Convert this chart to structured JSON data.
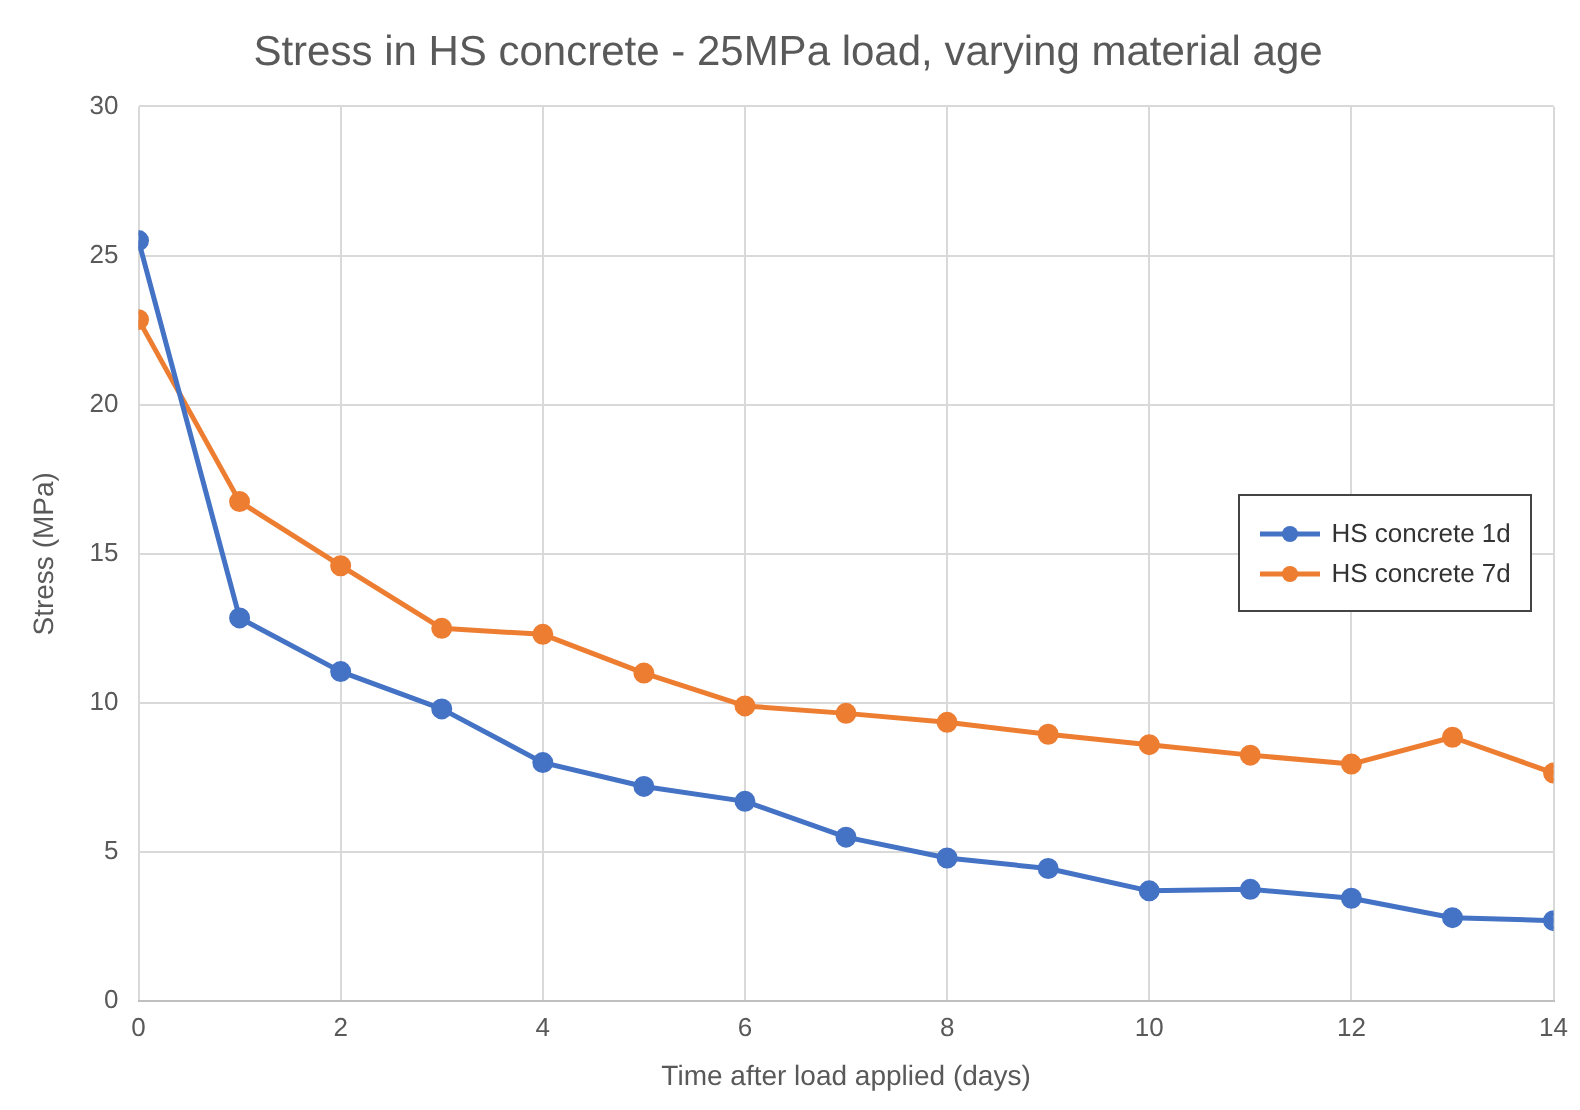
{
  "chart_data": {
    "type": "line",
    "title": "Stress in HS concrete - 25MPa load, varying material age",
    "xlabel": "Time after load applied (days)",
    "ylabel": "Stress (MPa)",
    "x": [
      0,
      1,
      2,
      3,
      4,
      5,
      6,
      7,
      8,
      9,
      10,
      11,
      12,
      13,
      14
    ],
    "series": [
      {
        "name": "HS concrete 1d",
        "color": "#4472c4",
        "values": [
          25.5,
          12.85,
          11.05,
          9.8,
          8.0,
          7.2,
          6.7,
          5.5,
          4.8,
          4.45,
          3.7,
          3.75,
          3.45,
          2.8,
          2.7
        ]
      },
      {
        "name": "HS concrete 7d",
        "color": "#ed7d31",
        "values": [
          22.85,
          16.75,
          14.6,
          12.5,
          12.3,
          11.0,
          9.9,
          9.65,
          9.35,
          8.95,
          8.6,
          8.25,
          7.95,
          8.85,
          7.65
        ]
      }
    ],
    "xlim": [
      0,
      14
    ],
    "xticks": [
      0,
      2,
      4,
      6,
      8,
      10,
      12,
      14
    ],
    "ylim": [
      0,
      30
    ],
    "yticks": [
      0,
      5,
      10,
      15,
      20,
      25,
      30
    ],
    "grid": true,
    "legend": "right",
    "marker": "circle",
    "line_style": "solid"
  }
}
